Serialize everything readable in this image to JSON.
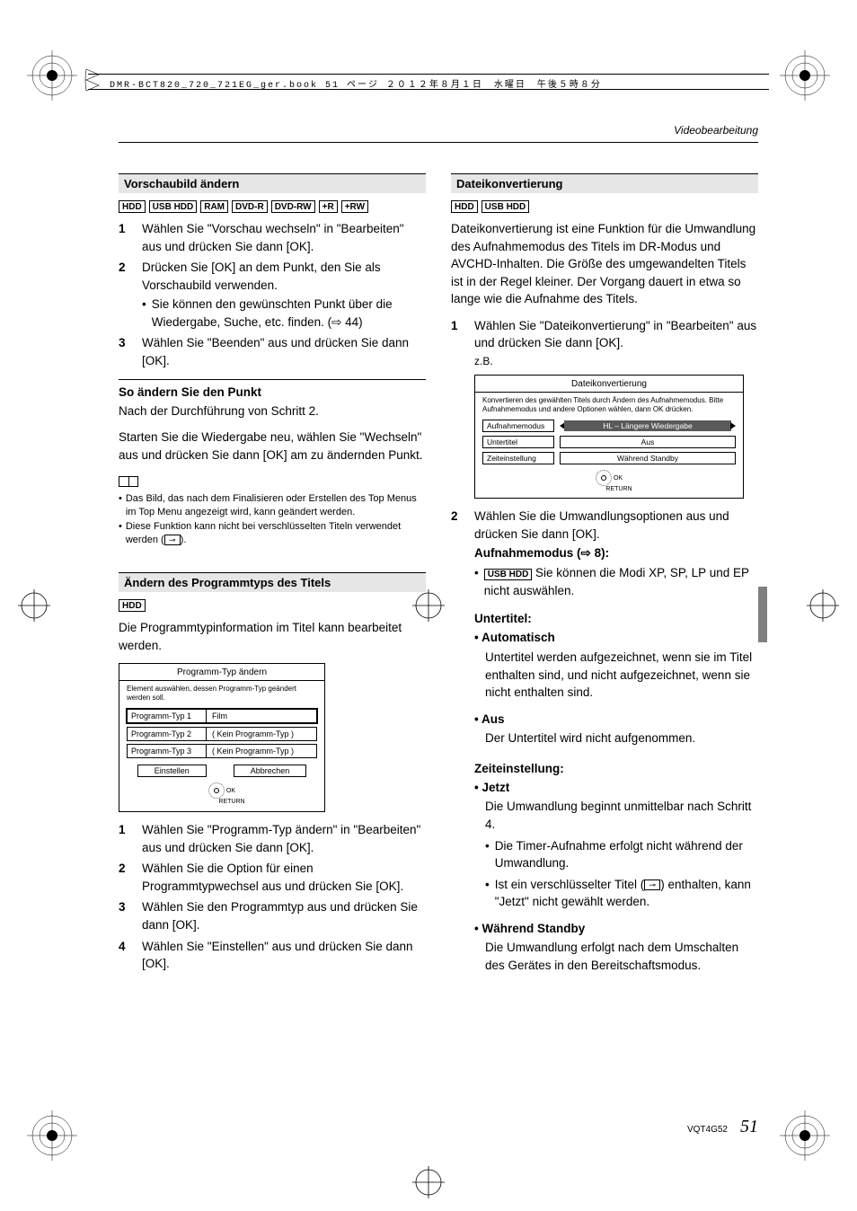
{
  "header_strip": "DMR-BCT820_720_721EG_ger.book  51 ページ  ２０１２年８月１日　水曜日　午後５時８分",
  "section_header": "Videobearbeitung",
  "left": {
    "h1": "Vorschaubild ändern",
    "badges1": [
      "HDD",
      "USB HDD",
      "RAM",
      "DVD-R",
      "DVD-RW",
      "+R",
      "+RW"
    ],
    "step1": "Wählen Sie \"Vorschau wechseln\" in \"Bearbeiten\" aus und drücken Sie dann [OK].",
    "step2": "Drücken Sie [OK] an dem Punkt, den Sie als Vorschaubild verwenden.",
    "step2_sub": "Sie können den gewünschten Punkt über die Wiedergabe, Suche, etc. finden. (⇨ 44)",
    "step3": "Wählen Sie \"Beenden\" aus und drücken Sie dann [OK].",
    "sub1_head": "So ändern Sie den Punkt",
    "sub1_p1": "Nach der Durchführung von Schritt 2.",
    "sub1_p2": "Starten Sie die Wiedergabe neu, wählen Sie \"Wechseln\" aus und drücken Sie dann [OK] am zu ändernden Punkt.",
    "note1": "Das Bild, das nach dem Finalisieren oder Erstellen des Top Menus im Top Menu angezeigt wird, kann geändert werden.",
    "note2_a": "Diese Funktion kann nicht bei verschlüsselten Titeln verwendet werden (",
    "note2_b": ").",
    "h2": "Ändern des Programmtyps des Titels",
    "badges2": [
      "HDD"
    ],
    "p2": "Die Programmtypinformation im Titel kann bearbeitet werden.",
    "ui2": {
      "title": "Programm-Typ ändern",
      "desc": "Element auswählen, dessen Programm-Typ geändert werden soll.",
      "rows": [
        {
          "label": "Programm-Typ 1",
          "value": "Film",
          "dbl": true
        },
        {
          "label": "Programm-Typ 2",
          "value": "( Kein Programm-Typ )",
          "dbl": false
        },
        {
          "label": "Programm-Typ 3",
          "value": "( Kein Programm-Typ )",
          "dbl": false
        }
      ],
      "btn_ok": "Einstellen",
      "btn_cancel": "Abbrechen",
      "ok": "OK",
      "return": "RETURN"
    },
    "s2_1": "Wählen Sie \"Programm-Typ ändern\" in \"Bearbeiten\" aus und drücken Sie dann [OK].",
    "s2_2": "Wählen Sie die Option für einen Programmtypwechsel aus und drücken Sie [OK].",
    "s2_3": "Wählen Sie den Programmtyp aus und drücken Sie dann [OK].",
    "s2_4": "Wählen Sie \"Einstellen\" aus und drücken Sie dann [OK]."
  },
  "right": {
    "h1": "Dateikonvertierung",
    "badges1": [
      "HDD",
      "USB HDD"
    ],
    "intro": "Dateikonvertierung ist eine Funktion für die Umwandlung des Aufnahmemodus des Titels im DR-Modus und AVCHD-Inhalten. Die Größe des umgewandelten Titels ist in der Regel kleiner. Der Vorgang dauert in etwa so lange wie die Aufnahme des Titels.",
    "step1": "Wählen Sie \"Dateikonvertierung\" in \"Bearbeiten\" aus und drücken Sie dann [OK].",
    "step1_eg": "z.B.",
    "ui1": {
      "title": "Dateikonvertierung",
      "desc": "Konvertieren des gewählten Titels durch Ändern des Aufnahmemodus. Bitte Aufnahmemodus und andere Optionen wählen, dann OK drücken.",
      "rows": [
        {
          "label": "Aufnahmemodus",
          "value": "HL – Längere Wiedergabe",
          "arrows": true,
          "dark": true
        },
        {
          "label": "Untertitel",
          "value": "Aus",
          "arrows": false,
          "dark": false
        },
        {
          "label": "Zeiteinstellung",
          "value": "Während Standby",
          "arrows": false,
          "dark": false
        }
      ],
      "ok": "OK",
      "return": "RETURN"
    },
    "step2": "Wählen Sie die Umwandlungsoptionen aus und drücken Sie dann [OK].",
    "aufn_head": "Aufnahmemodus (⇨ 8):",
    "aufn_badge": "USB HDD",
    "aufn_text": " Sie können die Modi XP, SP, LP und EP nicht auswählen.",
    "unt_head": "Untertitel:",
    "unt_auto_h": "Automatisch",
    "unt_auto_t": "Untertitel werden aufgezeichnet, wenn sie im Titel enthalten sind, und nicht aufgezeichnet, wenn sie nicht enthalten sind.",
    "unt_aus_h": "Aus",
    "unt_aus_t": "Der Untertitel wird nicht aufgenommen.",
    "zeit_head": "Zeiteinstellung:",
    "zeit_jetzt_h": "Jetzt",
    "zeit_jetzt_t": "Die Umwandlung beginnt unmittelbar nach Schritt 4.",
    "zeit_jetzt_b1": "Die Timer-Aufnahme erfolgt nicht während der Umwandlung.",
    "zeit_jetzt_b2a": "Ist ein verschlüsselter Titel (",
    "zeit_jetzt_b2b": ") enthalten, kann \"Jetzt\" nicht gewählt werden.",
    "zeit_standby_h": "Während Standby",
    "zeit_standby_t": "Die Umwandlung erfolgt nach dem Umschalten des Gerätes in den Bereitschaftsmodus."
  },
  "footer": {
    "code": "VQT4G52",
    "page": "51"
  }
}
